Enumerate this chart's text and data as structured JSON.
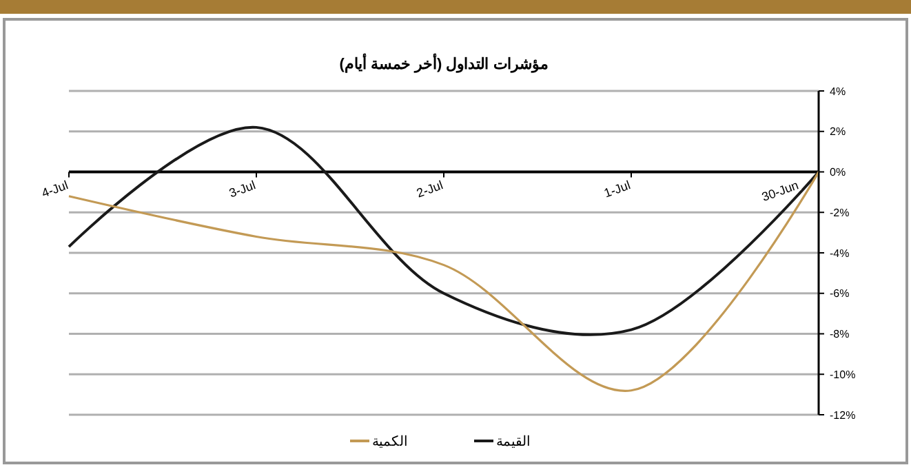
{
  "chart_data": {
    "type": "line",
    "title": "مؤشرات التداول (أخر خمسة أيام)",
    "categories": [
      "4-Jul",
      "3-Jul",
      "2-Jul",
      "1-Jul",
      "30-Jun"
    ],
    "series": [
      {
        "name": "القيمة",
        "color": "#1a1a1a",
        "values": [
          -3.7,
          2.2,
          -6,
          -7.8,
          0
        ]
      },
      {
        "name": "الكمية",
        "color": "#c39a55",
        "values": [
          -1.2,
          -3.2,
          -4.6,
          -10.8,
          0
        ]
      }
    ],
    "ylim": [
      -12,
      4
    ],
    "yticks": [
      {
        "value": 4,
        "label": "4%"
      },
      {
        "value": 2,
        "label": "2%"
      },
      {
        "value": 0,
        "label": "0%"
      },
      {
        "value": -2,
        "label": "-2%"
      },
      {
        "value": -4,
        "label": "-4%"
      },
      {
        "value": -6,
        "label": "-6%"
      },
      {
        "value": -8,
        "label": "-8%"
      },
      {
        "value": -10,
        "label": "-10%"
      },
      {
        "value": -12,
        "label": "-12%"
      }
    ],
    "grid": "y",
    "legend": "bottom",
    "marker": "none",
    "line_style": "solid"
  }
}
